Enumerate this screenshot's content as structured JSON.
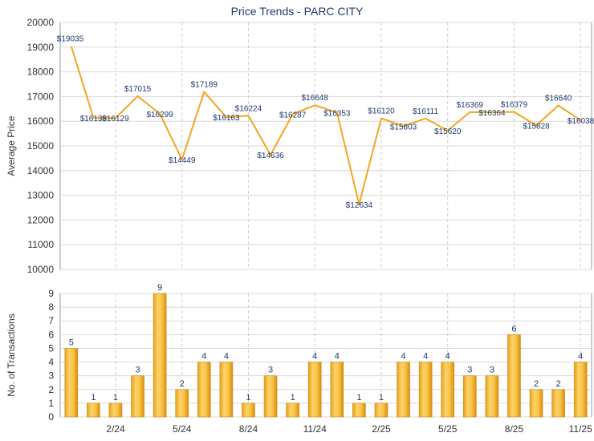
{
  "chart_data": [
    {
      "type": "line",
      "title": "Price Trends - PARC CITY",
      "ylabel": "Average Price",
      "xlabel": "",
      "ylim": [
        10000,
        20000
      ],
      "yticks": [
        10000,
        11000,
        12000,
        13000,
        14000,
        15000,
        16000,
        17000,
        18000,
        19000,
        20000
      ],
      "grid": true,
      "color": "#f5a623",
      "series": [
        {
          "values": [
            19035,
            16138,
            16129,
            17015,
            16299,
            14449,
            17189,
            16163,
            16224,
            14636,
            16287,
            16648,
            16353,
            12634,
            16120,
            15803,
            16111,
            15620,
            16369,
            16364,
            16379,
            15828,
            16640,
            16038
          ],
          "labels": [
            "$19035",
            "$16138",
            "$16129",
            "$17015",
            "$16299",
            "$14449",
            "$17189",
            "$16163",
            "$16224",
            "$14636",
            "$16287",
            "$16648",
            "$16353",
            "$12634",
            "$16120",
            "$15803",
            "$16111",
            "$15620",
            "$16369",
            "$16364",
            "$16379",
            "$15828",
            "$16640",
            "$16038"
          ]
        }
      ]
    },
    {
      "type": "bar",
      "ylabel": "No. of Transactions",
      "xlabel": "",
      "ylim": [
        0,
        9
      ],
      "yticks": [
        0,
        1,
        2,
        3,
        4,
        5,
        6,
        7,
        8,
        9
      ],
      "grid": true,
      "color": "#f5b52a",
      "values": [
        5,
        1,
        1,
        3,
        9,
        2,
        4,
        4,
        1,
        3,
        1,
        4,
        4,
        1,
        1,
        4,
        4,
        4,
        3,
        3,
        6,
        2,
        2,
        4
      ],
      "xticks": [
        {
          "index": 2,
          "label": "2/24"
        },
        {
          "index": 5,
          "label": "5/24"
        },
        {
          "index": 8,
          "label": "8/24"
        },
        {
          "index": 11,
          "label": "11/24"
        },
        {
          "index": 14,
          "label": "2/25"
        },
        {
          "index": 17,
          "label": "5/25"
        },
        {
          "index": 20,
          "label": "8/25"
        },
        {
          "index": 23,
          "label": "11/25"
        }
      ]
    }
  ]
}
